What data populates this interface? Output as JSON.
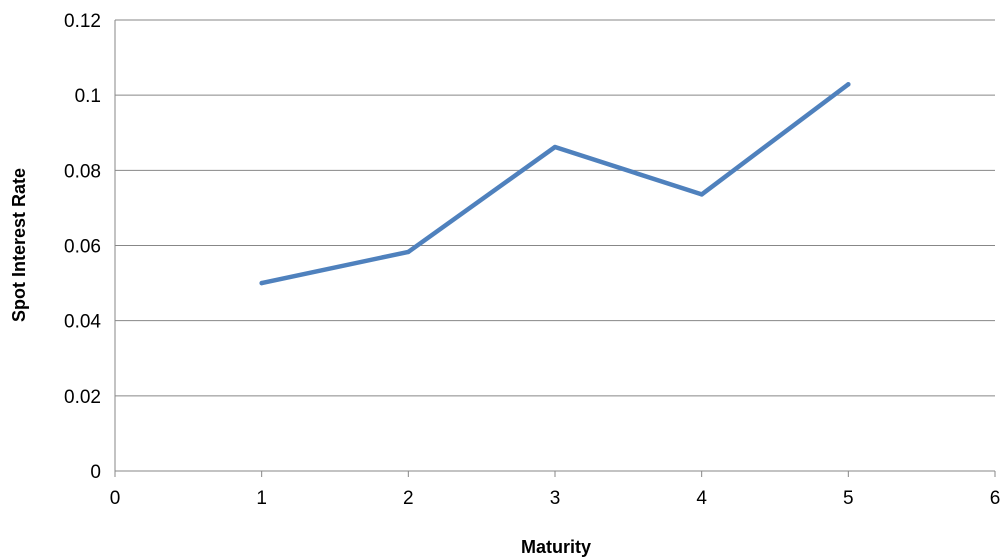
{
  "chart_data": {
    "type": "line",
    "title": "",
    "xlabel": "Maturity",
    "ylabel": "Spot Interest Rate",
    "xlim": [
      0,
      6
    ],
    "ylim": [
      0,
      0.12
    ],
    "x_ticks": [
      "0",
      "1",
      "2",
      "3",
      "4",
      "5",
      "6"
    ],
    "y_ticks": [
      "0",
      "0.02",
      "0.04",
      "0.06",
      "0.08",
      "0.1",
      "0.12"
    ],
    "grid": "horizontal",
    "legend": "none",
    "series": [
      {
        "color": "#4f81bd",
        "x": [
          1,
          2,
          3,
          4,
          5
        ],
        "y": [
          0.05,
          0.0583,
          0.0862,
          0.0736,
          0.1029
        ]
      }
    ]
  }
}
